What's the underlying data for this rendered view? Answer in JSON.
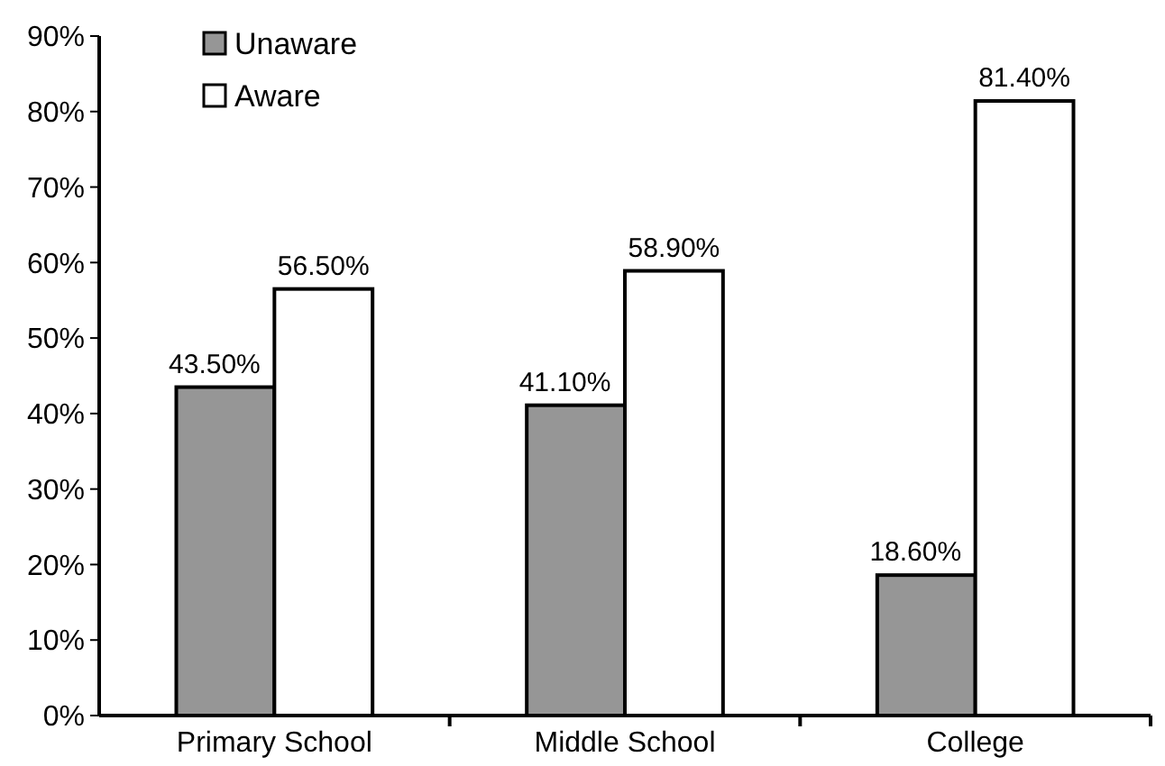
{
  "chart_data": {
    "type": "bar",
    "categories": [
      "Primary School",
      "Middle School",
      "College"
    ],
    "series": [
      {
        "name": "Unaware",
        "color": "#969696",
        "values": [
          43.5,
          41.1,
          18.6
        ],
        "value_labels": [
          "43.50%",
          "41.10%",
          "18.60%"
        ]
      },
      {
        "name": "Aware",
        "color": "#ffffff",
        "values": [
          56.5,
          58.9,
          81.4
        ],
        "value_labels": [
          "56.50%",
          "58.90%",
          "81.40%"
        ]
      }
    ],
    "ylim": [
      0,
      90
    ],
    "yticks": [
      {
        "value": 0,
        "label": "0%"
      },
      {
        "value": 10,
        "label": "10%"
      },
      {
        "value": 20,
        "label": "20%"
      },
      {
        "value": 30,
        "label": "30%"
      },
      {
        "value": 40,
        "label": "40%"
      },
      {
        "value": 50,
        "label": "50%"
      },
      {
        "value": 60,
        "label": "60%"
      },
      {
        "value": 70,
        "label": "70%"
      },
      {
        "value": 80,
        "label": "80%"
      },
      {
        "value": 90,
        "label": "90%"
      }
    ],
    "grid": false,
    "legend": "top left"
  }
}
